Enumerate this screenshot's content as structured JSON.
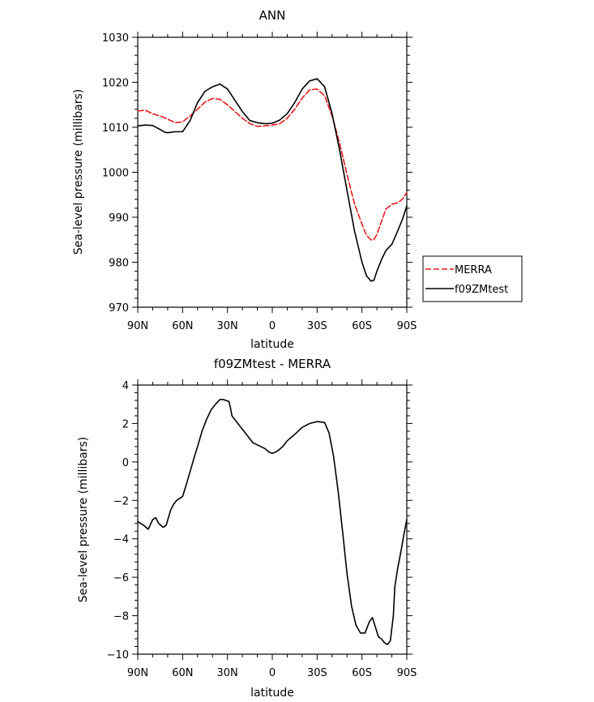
{
  "chart_data": [
    {
      "type": "line",
      "title": "ANN",
      "xlabel": "latitude",
      "ylabel": "Sea-level pressure (millibars)",
      "xlim": [
        90,
        -90
      ],
      "ylim": [
        970,
        1030
      ],
      "x_tick_labels": [
        "90N",
        "60N",
        "30N",
        "0",
        "30S",
        "60S",
        "90S"
      ],
      "y_ticks": [
        970,
        980,
        990,
        1000,
        1010,
        1020,
        1030
      ],
      "legend_position": "right",
      "series": [
        {
          "name": "MERRA",
          "color": "#e41a1c",
          "dash": "dashed",
          "x": [
            90,
            85,
            80,
            75,
            70,
            65,
            60,
            55,
            50,
            45,
            40,
            35,
            30,
            25,
            20,
            15,
            10,
            5,
            0,
            -5,
            -10,
            -15,
            -20,
            -25,
            -30,
            -35,
            -40,
            -45,
            -50,
            -55,
            -60,
            -63,
            -66,
            -68,
            -70,
            -73,
            -76,
            -80,
            -84,
            -87,
            -90
          ],
          "y": [
            1013.6,
            1013.8,
            1013.0,
            1012.5,
            1011.8,
            1011.0,
            1011.2,
            1012.5,
            1014.0,
            1015.6,
            1016.4,
            1016.2,
            1015.0,
            1013.5,
            1012.0,
            1010.8,
            1010.2,
            1010.3,
            1010.5,
            1010.8,
            1012.0,
            1014.0,
            1016.5,
            1018.3,
            1018.5,
            1017.0,
            1012.5,
            1006.5,
            999.5,
            993.0,
            988.5,
            986.0,
            985.0,
            985.0,
            986.2,
            989.0,
            991.8,
            992.9,
            993.2,
            994.0,
            995.5
          ]
        },
        {
          "name": "f09ZMtest",
          "color": "#000000",
          "dash": "solid",
          "x": [
            90,
            85,
            80,
            75,
            72,
            70,
            65,
            60,
            55,
            50,
            45,
            40,
            35,
            30,
            25,
            20,
            15,
            10,
            5,
            0,
            -5,
            -10,
            -15,
            -20,
            -25,
            -30,
            -35,
            -40,
            -45,
            -50,
            -55,
            -60,
            -63,
            -66,
            -68,
            -70,
            -73,
            -76,
            -80,
            -84,
            -87,
            -90
          ],
          "y": [
            1010.3,
            1010.5,
            1010.4,
            1009.5,
            1008.9,
            1008.8,
            1009.0,
            1009.0,
            1011.5,
            1015.5,
            1018.0,
            1019.0,
            1019.6,
            1018.5,
            1016.0,
            1013.5,
            1011.5,
            1011.0,
            1010.8,
            1010.9,
            1011.6,
            1013.0,
            1015.5,
            1018.5,
            1020.3,
            1020.8,
            1019.0,
            1013.0,
            1005.0,
            996.0,
            987.0,
            980.0,
            977.0,
            975.8,
            976.0,
            978.0,
            980.5,
            982.6,
            984.0,
            987.0,
            989.5,
            992.5
          ]
        }
      ]
    },
    {
      "type": "line",
      "title": "f09ZMtest - MERRA",
      "xlabel": "latitude",
      "ylabel": "Sea-level pressure (millibars)",
      "xlim": [
        90,
        -90
      ],
      "ylim": [
        -10,
        4
      ],
      "x_tick_labels": [
        "90N",
        "60N",
        "30N",
        "0",
        "30S",
        "60S",
        "90S"
      ],
      "y_ticks": [
        -10,
        -8,
        -6,
        -4,
        -2,
        0,
        2,
        4
      ],
      "series": [
        {
          "name": "",
          "color": "#000000",
          "dash": "solid",
          "x": [
            90,
            86,
            83,
            80,
            78,
            76,
            73,
            71,
            68,
            66,
            64,
            62,
            60,
            58,
            55,
            52,
            50,
            47,
            44,
            41,
            38,
            35,
            33,
            31,
            29,
            28,
            27,
            24,
            20,
            16,
            13,
            9,
            5,
            2,
            0,
            -2,
            -4,
            -7,
            -10,
            -13,
            -16,
            -20,
            -25,
            -30,
            -35,
            -38,
            -41,
            -44,
            -47,
            -50,
            -53,
            -56,
            -59,
            -62,
            -65,
            -67,
            -69,
            -71,
            -73,
            -75,
            -77,
            -79,
            -81,
            -82,
            -84,
            -86,
            -88,
            -90
          ],
          "y": [
            -3.1,
            -3.3,
            -3.5,
            -3.0,
            -2.9,
            -3.2,
            -3.4,
            -3.3,
            -2.5,
            -2.2,
            -2.0,
            -1.9,
            -1.8,
            -1.3,
            -0.5,
            0.3,
            0.8,
            1.6,
            2.2,
            2.7,
            3.0,
            3.25,
            3.25,
            3.2,
            3.15,
            2.8,
            2.4,
            2.1,
            1.7,
            1.3,
            1.0,
            0.85,
            0.7,
            0.5,
            0.45,
            0.5,
            0.6,
            0.8,
            1.1,
            1.3,
            1.5,
            1.8,
            2.0,
            2.1,
            2.05,
            1.5,
            0.3,
            -1.5,
            -3.6,
            -5.8,
            -7.5,
            -8.5,
            -8.9,
            -8.9,
            -8.3,
            -8.1,
            -8.6,
            -9.1,
            -9.2,
            -9.4,
            -9.5,
            -9.3,
            -8.0,
            -6.5,
            -5.5,
            -4.7,
            -3.8,
            -3.0
          ]
        }
      ]
    }
  ]
}
